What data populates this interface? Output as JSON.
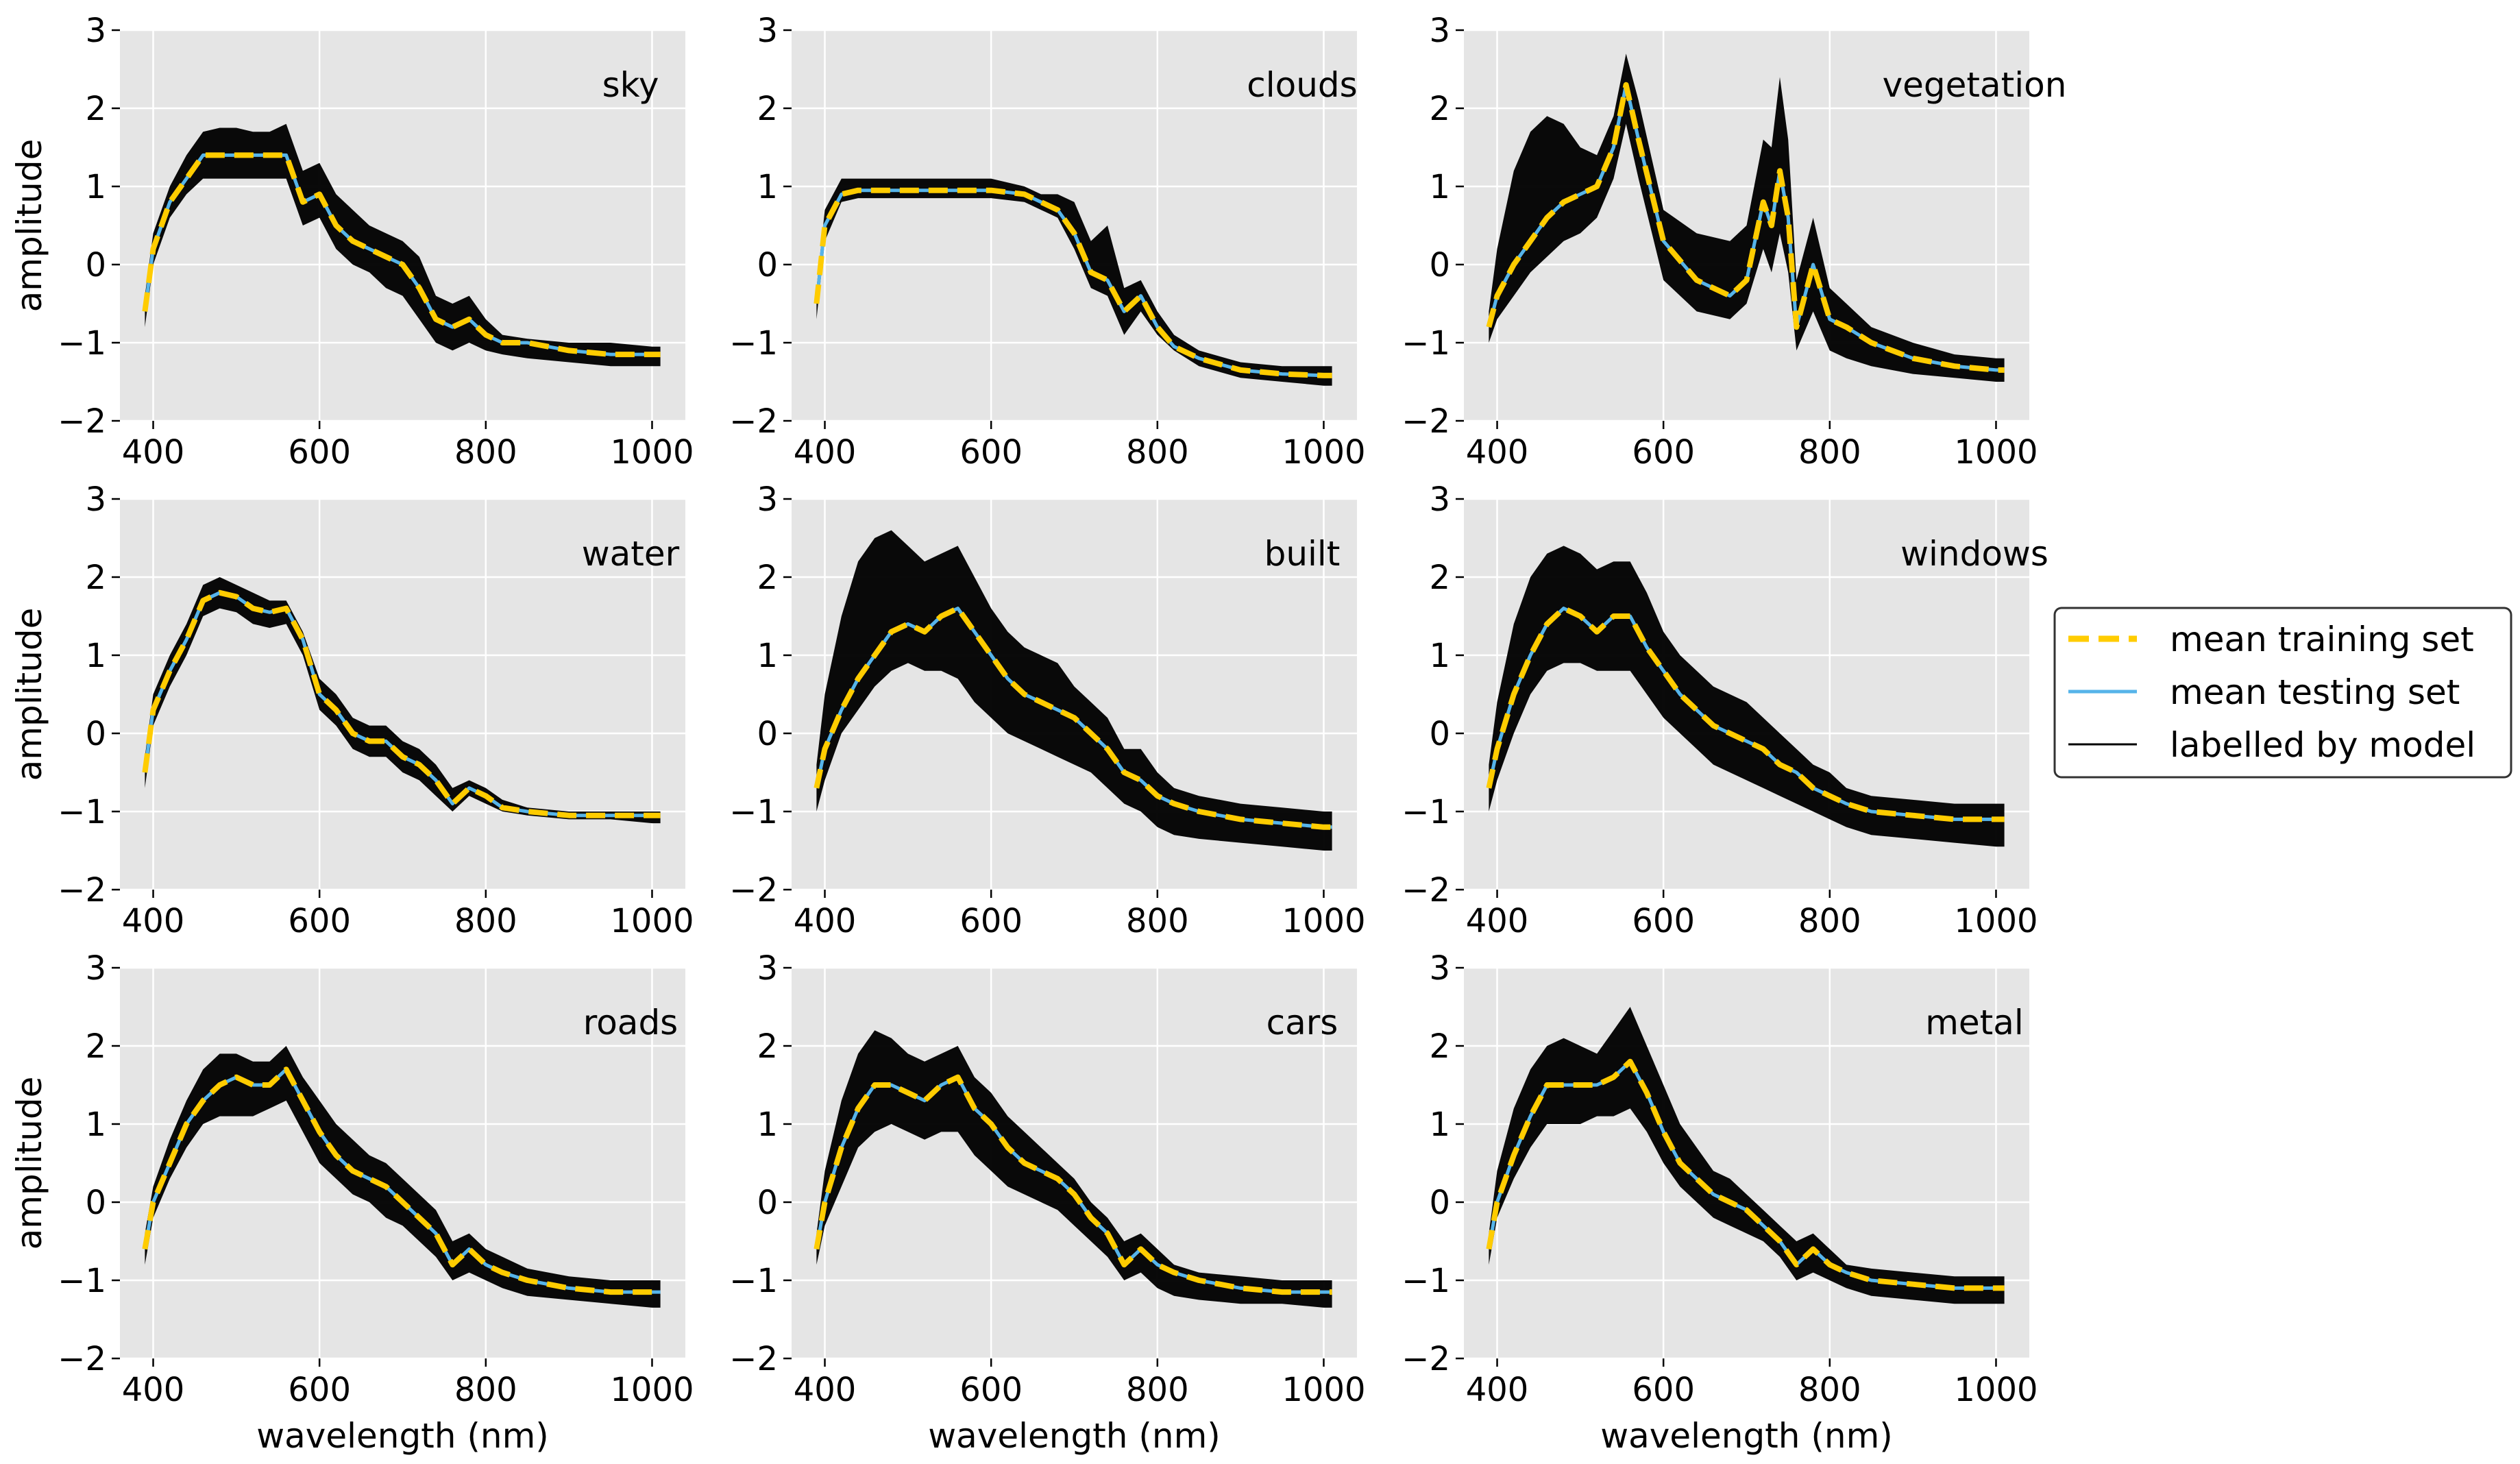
{
  "chart_data": {
    "type": "line",
    "xlabel": "wavelength (nm)",
    "ylabel": "amplitude",
    "xlim": [
      360,
      1040
    ],
    "ylim": [
      -2,
      3
    ],
    "xticks": [
      400,
      600,
      800,
      1000
    ],
    "yticks": [
      -2,
      -1,
      0,
      1,
      2,
      3
    ],
    "grid": true,
    "legend": {
      "placement": "right",
      "entries": [
        {
          "label": "mean training set",
          "color": "#ffcc00",
          "style": "dashed"
        },
        {
          "label": "mean testing set",
          "color": "#56b4e9",
          "style": "solid"
        },
        {
          "label": "labelled by model",
          "color": "#000000",
          "style": "solid"
        }
      ]
    },
    "panels": [
      {
        "title": "sky",
        "x": [
          390,
          400,
          420,
          440,
          460,
          480,
          500,
          520,
          540,
          560,
          580,
          600,
          620,
          640,
          660,
          680,
          700,
          720,
          740,
          760,
          780,
          800,
          820,
          850,
          900,
          950,
          1000,
          1010
        ],
        "mean": [
          -0.6,
          0.2,
          0.8,
          1.1,
          1.4,
          1.4,
          1.4,
          1.4,
          1.4,
          1.4,
          0.8,
          0.9,
          0.5,
          0.3,
          0.2,
          0.1,
          0.0,
          -0.3,
          -0.7,
          -0.8,
          -0.7,
          -0.9,
          -1.0,
          -1.0,
          -1.1,
          -1.15,
          -1.15,
          -1.15
        ],
        "upper": [
          -0.4,
          0.4,
          1.0,
          1.4,
          1.7,
          1.75,
          1.75,
          1.7,
          1.7,
          1.8,
          1.2,
          1.3,
          0.9,
          0.7,
          0.5,
          0.4,
          0.3,
          0.1,
          -0.4,
          -0.5,
          -0.4,
          -0.7,
          -0.9,
          -0.95,
          -1.0,
          -1.0,
          -1.05,
          -1.05
        ],
        "lower": [
          -0.8,
          0.0,
          0.6,
          0.9,
          1.1,
          1.1,
          1.1,
          1.1,
          1.1,
          1.1,
          0.5,
          0.6,
          0.2,
          0.0,
          -0.1,
          -0.3,
          -0.4,
          -0.7,
          -1.0,
          -1.1,
          -1.0,
          -1.1,
          -1.15,
          -1.2,
          -1.25,
          -1.3,
          -1.3,
          -1.3
        ]
      },
      {
        "title": "clouds",
        "x": [
          390,
          400,
          420,
          440,
          460,
          500,
          550,
          600,
          640,
          660,
          680,
          700,
          720,
          740,
          760,
          780,
          800,
          820,
          850,
          900,
          950,
          1000,
          1010
        ],
        "mean": [
          -0.5,
          0.5,
          0.9,
          0.95,
          0.95,
          0.95,
          0.95,
          0.95,
          0.9,
          0.8,
          0.7,
          0.4,
          -0.1,
          -0.2,
          -0.6,
          -0.4,
          -0.8,
          -1.05,
          -1.2,
          -1.35,
          -1.4,
          -1.42,
          -1.42
        ],
        "upper": [
          -0.3,
          0.7,
          1.1,
          1.1,
          1.1,
          1.1,
          1.1,
          1.1,
          1.0,
          0.9,
          0.9,
          0.8,
          0.3,
          0.5,
          -0.3,
          -0.2,
          -0.6,
          -0.9,
          -1.1,
          -1.25,
          -1.3,
          -1.3,
          -1.3
        ],
        "lower": [
          -0.7,
          0.3,
          0.8,
          0.85,
          0.85,
          0.85,
          0.85,
          0.85,
          0.8,
          0.7,
          0.6,
          0.2,
          -0.3,
          -0.4,
          -0.9,
          -0.6,
          -0.9,
          -1.1,
          -1.3,
          -1.45,
          -1.5,
          -1.55,
          -1.55
        ]
      },
      {
        "title": "vegetation",
        "x": [
          390,
          400,
          420,
          440,
          460,
          480,
          500,
          520,
          540,
          555,
          570,
          600,
          640,
          680,
          700,
          720,
          730,
          740,
          750,
          760,
          780,
          800,
          820,
          850,
          900,
          950,
          1000,
          1010
        ],
        "mean": [
          -0.8,
          -0.4,
          0.0,
          0.3,
          0.6,
          0.8,
          0.9,
          1.0,
          1.5,
          2.3,
          1.6,
          0.3,
          -0.2,
          -0.4,
          -0.2,
          0.8,
          0.5,
          1.2,
          0.6,
          -0.8,
          0.0,
          -0.7,
          -0.8,
          -1.0,
          -1.2,
          -1.3,
          -1.35,
          -1.35
        ],
        "upper": [
          -0.6,
          0.2,
          1.2,
          1.7,
          1.9,
          1.8,
          1.5,
          1.4,
          1.9,
          2.7,
          2.1,
          0.7,
          0.4,
          0.3,
          0.5,
          1.6,
          1.5,
          2.4,
          1.6,
          -0.2,
          0.6,
          -0.3,
          -0.5,
          -0.8,
          -1.0,
          -1.15,
          -1.2,
          -1.2
        ],
        "lower": [
          -1.0,
          -0.7,
          -0.4,
          -0.1,
          0.1,
          0.3,
          0.4,
          0.6,
          1.1,
          1.8,
          1.1,
          -0.2,
          -0.6,
          -0.7,
          -0.5,
          0.2,
          -0.1,
          0.4,
          -0.1,
          -1.1,
          -0.6,
          -1.1,
          -1.2,
          -1.3,
          -1.4,
          -1.45,
          -1.5,
          -1.5
        ]
      },
      {
        "title": "water",
        "x": [
          390,
          400,
          420,
          440,
          460,
          480,
          500,
          520,
          540,
          560,
          580,
          600,
          620,
          640,
          660,
          680,
          700,
          720,
          740,
          760,
          780,
          800,
          820,
          850,
          900,
          950,
          1000,
          1010
        ],
        "mean": [
          -0.5,
          0.3,
          0.8,
          1.2,
          1.7,
          1.8,
          1.75,
          1.6,
          1.55,
          1.6,
          1.2,
          0.5,
          0.3,
          0.0,
          -0.1,
          -0.1,
          -0.3,
          -0.4,
          -0.6,
          -0.9,
          -0.7,
          -0.8,
          -0.95,
          -1.0,
          -1.05,
          -1.05,
          -1.05,
          -1.05
        ],
        "upper": [
          -0.3,
          0.5,
          1.0,
          1.4,
          1.9,
          2.0,
          1.9,
          1.8,
          1.7,
          1.7,
          1.3,
          0.7,
          0.5,
          0.2,
          0.1,
          0.1,
          -0.1,
          -0.2,
          -0.4,
          -0.7,
          -0.6,
          -0.7,
          -0.85,
          -0.95,
          -1.0,
          -1.0,
          -1.0,
          -1.0
        ],
        "lower": [
          -0.7,
          0.1,
          0.6,
          1.0,
          1.5,
          1.6,
          1.55,
          1.4,
          1.35,
          1.4,
          1.0,
          0.3,
          0.1,
          -0.2,
          -0.3,
          -0.3,
          -0.5,
          -0.6,
          -0.8,
          -1.0,
          -0.8,
          -0.9,
          -1.0,
          -1.05,
          -1.1,
          -1.1,
          -1.15,
          -1.15
        ]
      },
      {
        "title": "built",
        "x": [
          390,
          400,
          420,
          440,
          460,
          480,
          500,
          520,
          540,
          560,
          580,
          600,
          620,
          640,
          660,
          680,
          700,
          720,
          740,
          760,
          780,
          800,
          820,
          850,
          900,
          950,
          1000,
          1010
        ],
        "mean": [
          -0.7,
          -0.2,
          0.3,
          0.7,
          1.0,
          1.3,
          1.4,
          1.3,
          1.5,
          1.6,
          1.3,
          1.0,
          0.7,
          0.5,
          0.4,
          0.3,
          0.2,
          0.0,
          -0.2,
          -0.5,
          -0.6,
          -0.8,
          -0.9,
          -1.0,
          -1.1,
          -1.15,
          -1.2,
          -1.2
        ],
        "upper": [
          -0.4,
          0.5,
          1.5,
          2.2,
          2.5,
          2.6,
          2.4,
          2.2,
          2.3,
          2.4,
          2.0,
          1.6,
          1.3,
          1.1,
          1.0,
          0.9,
          0.6,
          0.4,
          0.2,
          -0.2,
          -0.2,
          -0.5,
          -0.7,
          -0.8,
          -0.9,
          -0.95,
          -1.0,
          -1.0
        ],
        "lower": [
          -1.0,
          -0.6,
          0.0,
          0.3,
          0.6,
          0.8,
          0.9,
          0.8,
          0.8,
          0.7,
          0.4,
          0.2,
          0.0,
          -0.1,
          -0.2,
          -0.3,
          -0.4,
          -0.5,
          -0.7,
          -0.9,
          -1.0,
          -1.2,
          -1.3,
          -1.35,
          -1.4,
          -1.45,
          -1.5,
          -1.5
        ]
      },
      {
        "title": "windows",
        "x": [
          390,
          400,
          420,
          440,
          460,
          480,
          500,
          520,
          540,
          560,
          580,
          600,
          620,
          640,
          660,
          680,
          700,
          720,
          740,
          760,
          780,
          800,
          820,
          850,
          900,
          950,
          1000,
          1010
        ],
        "mean": [
          -0.7,
          -0.2,
          0.5,
          1.0,
          1.4,
          1.6,
          1.5,
          1.3,
          1.5,
          1.5,
          1.1,
          0.8,
          0.5,
          0.3,
          0.1,
          0.0,
          -0.1,
          -0.2,
          -0.4,
          -0.5,
          -0.7,
          -0.8,
          -0.9,
          -1.0,
          -1.05,
          -1.1,
          -1.1,
          -1.1
        ],
        "upper": [
          -0.4,
          0.4,
          1.4,
          2.0,
          2.3,
          2.4,
          2.3,
          2.1,
          2.2,
          2.2,
          1.8,
          1.3,
          1.0,
          0.8,
          0.6,
          0.5,
          0.4,
          0.2,
          0.0,
          -0.2,
          -0.4,
          -0.5,
          -0.7,
          -0.8,
          -0.85,
          -0.9,
          -0.9,
          -0.9
        ],
        "lower": [
          -1.0,
          -0.6,
          0.0,
          0.5,
          0.8,
          0.9,
          0.9,
          0.8,
          0.8,
          0.8,
          0.5,
          0.2,
          0.0,
          -0.2,
          -0.4,
          -0.5,
          -0.6,
          -0.7,
          -0.8,
          -0.9,
          -1.0,
          -1.1,
          -1.2,
          -1.3,
          -1.35,
          -1.4,
          -1.45,
          -1.45
        ]
      },
      {
        "title": "roads",
        "x": [
          390,
          400,
          420,
          440,
          460,
          480,
          500,
          520,
          540,
          560,
          580,
          600,
          620,
          640,
          660,
          680,
          700,
          720,
          740,
          760,
          780,
          800,
          820,
          850,
          900,
          950,
          1000,
          1010
        ],
        "mean": [
          -0.6,
          0.0,
          0.5,
          1.0,
          1.3,
          1.5,
          1.6,
          1.5,
          1.5,
          1.7,
          1.3,
          0.9,
          0.6,
          0.4,
          0.3,
          0.2,
          0.0,
          -0.2,
          -0.4,
          -0.8,
          -0.6,
          -0.8,
          -0.9,
          -1.0,
          -1.1,
          -1.15,
          -1.15,
          -1.15
        ],
        "upper": [
          -0.4,
          0.2,
          0.8,
          1.3,
          1.7,
          1.9,
          1.9,
          1.8,
          1.8,
          2.0,
          1.6,
          1.3,
          1.0,
          0.8,
          0.6,
          0.5,
          0.3,
          0.1,
          -0.1,
          -0.5,
          -0.4,
          -0.6,
          -0.7,
          -0.85,
          -0.95,
          -1.0,
          -1.0,
          -1.0
        ],
        "lower": [
          -0.8,
          -0.2,
          0.3,
          0.7,
          1.0,
          1.1,
          1.1,
          1.1,
          1.2,
          1.3,
          0.9,
          0.5,
          0.3,
          0.1,
          0.0,
          -0.2,
          -0.3,
          -0.5,
          -0.7,
          -1.0,
          -0.9,
          -1.0,
          -1.1,
          -1.2,
          -1.25,
          -1.3,
          -1.35,
          -1.35
        ]
      },
      {
        "title": "cars",
        "x": [
          390,
          400,
          420,
          440,
          460,
          480,
          500,
          520,
          540,
          560,
          580,
          600,
          620,
          640,
          660,
          680,
          700,
          720,
          740,
          760,
          780,
          800,
          820,
          850,
          900,
          950,
          1000,
          1010
        ],
        "mean": [
          -0.6,
          0.0,
          0.7,
          1.2,
          1.5,
          1.5,
          1.4,
          1.3,
          1.5,
          1.6,
          1.2,
          1.0,
          0.7,
          0.5,
          0.4,
          0.3,
          0.1,
          -0.2,
          -0.4,
          -0.8,
          -0.6,
          -0.8,
          -0.9,
          -1.0,
          -1.1,
          -1.15,
          -1.15,
          -1.15
        ],
        "upper": [
          -0.4,
          0.4,
          1.3,
          1.9,
          2.2,
          2.1,
          1.9,
          1.8,
          1.9,
          2.0,
          1.6,
          1.4,
          1.1,
          0.9,
          0.7,
          0.5,
          0.3,
          0.0,
          -0.2,
          -0.5,
          -0.4,
          -0.6,
          -0.8,
          -0.9,
          -0.95,
          -1.0,
          -1.0,
          -1.0
        ],
        "lower": [
          -0.8,
          -0.3,
          0.2,
          0.7,
          0.9,
          1.0,
          0.9,
          0.8,
          0.9,
          0.9,
          0.6,
          0.4,
          0.2,
          0.1,
          0.0,
          -0.1,
          -0.3,
          -0.5,
          -0.7,
          -1.0,
          -0.9,
          -1.1,
          -1.2,
          -1.25,
          -1.3,
          -1.3,
          -1.35,
          -1.35
        ]
      },
      {
        "title": "metal",
        "x": [
          390,
          400,
          420,
          440,
          460,
          480,
          500,
          520,
          540,
          560,
          580,
          600,
          620,
          640,
          660,
          680,
          700,
          720,
          740,
          760,
          780,
          800,
          820,
          850,
          900,
          950,
          1000,
          1010
        ],
        "mean": [
          -0.6,
          0.0,
          0.6,
          1.1,
          1.5,
          1.5,
          1.5,
          1.5,
          1.6,
          1.8,
          1.4,
          0.9,
          0.5,
          0.3,
          0.1,
          0.0,
          -0.1,
          -0.3,
          -0.5,
          -0.8,
          -0.6,
          -0.8,
          -0.9,
          -1.0,
          -1.05,
          -1.1,
          -1.1,
          -1.1
        ],
        "upper": [
          -0.4,
          0.4,
          1.2,
          1.7,
          2.0,
          2.1,
          2.0,
          1.9,
          2.2,
          2.5,
          2.0,
          1.5,
          1.0,
          0.7,
          0.4,
          0.3,
          0.1,
          -0.1,
          -0.3,
          -0.5,
          -0.4,
          -0.6,
          -0.8,
          -0.85,
          -0.9,
          -0.95,
          -0.95,
          -0.95
        ],
        "lower": [
          -0.8,
          -0.2,
          0.3,
          0.7,
          1.0,
          1.0,
          1.0,
          1.1,
          1.1,
          1.2,
          0.9,
          0.5,
          0.2,
          0.0,
          -0.2,
          -0.3,
          -0.4,
          -0.5,
          -0.7,
          -1.0,
          -0.9,
          -1.0,
          -1.1,
          -1.2,
          -1.25,
          -1.3,
          -1.3,
          -1.3
        ]
      }
    ]
  }
}
